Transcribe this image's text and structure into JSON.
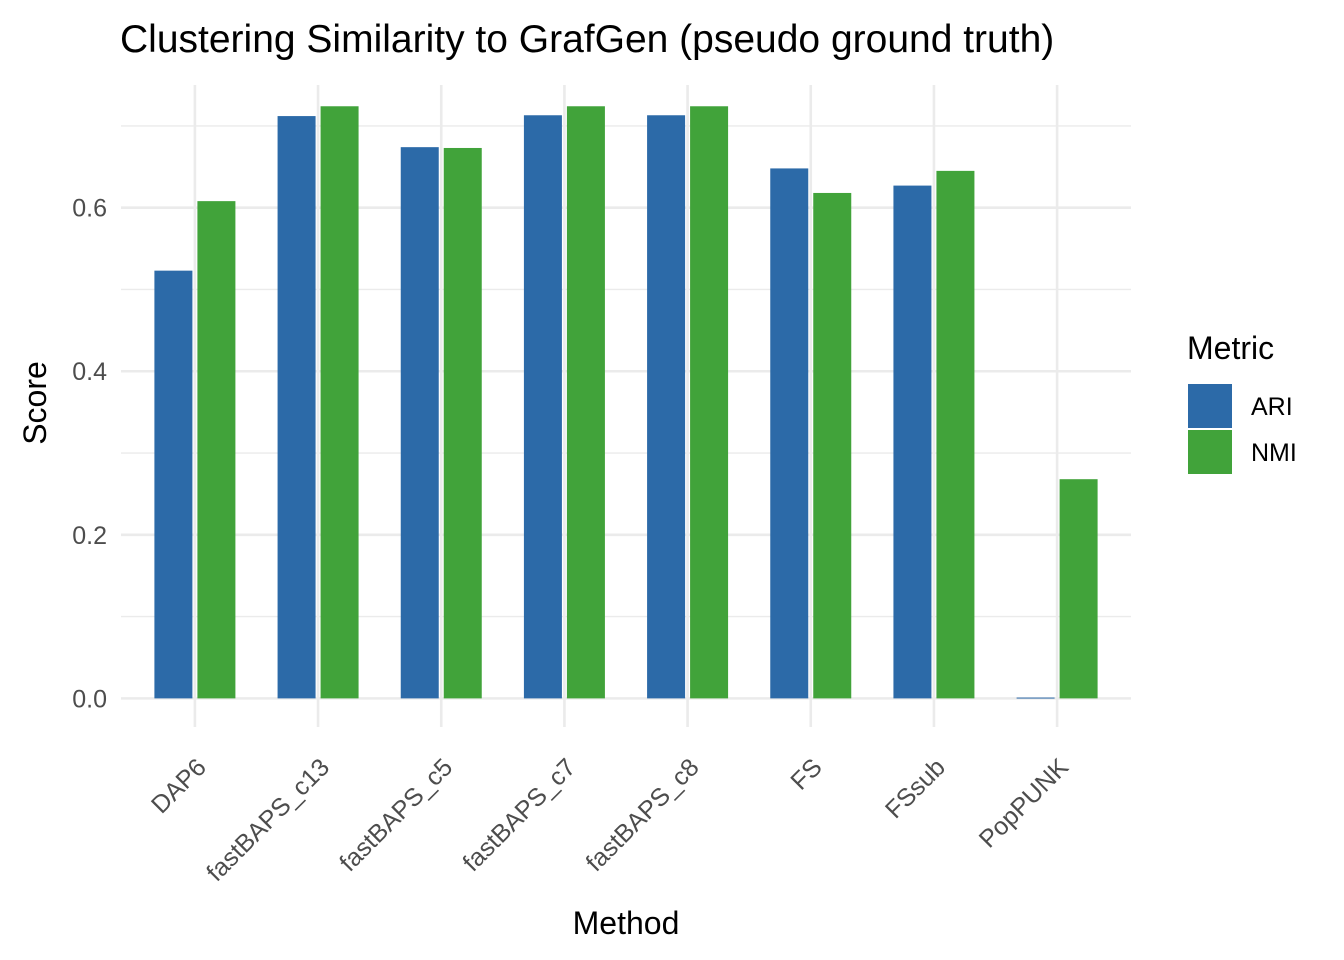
{
  "chart_data": {
    "type": "bar",
    "title": "Clustering Similarity to GrafGen (pseudo ground truth)",
    "xlabel": "Method",
    "ylabel": "Score",
    "categories": [
      "DAP6",
      "fastBAPS_c13",
      "fastBAPS_c5",
      "fastBAPS_c7",
      "fastBAPS_c8",
      "FS",
      "FSsub",
      "PopPUNK"
    ],
    "series": [
      {
        "name": "ARI",
        "color": "#2c6aa8",
        "values": [
          0.523,
          0.712,
          0.674,
          0.713,
          0.713,
          0.648,
          0.627,
          0.001
        ]
      },
      {
        "name": "NMI",
        "color": "#41a33a",
        "values": [
          0.608,
          0.724,
          0.673,
          0.724,
          0.724,
          0.618,
          0.645,
          0.268
        ]
      }
    ],
    "ylim": [
      -0.035,
      0.75
    ],
    "yticks": [
      0.0,
      0.2,
      0.4,
      0.6
    ],
    "ytick_labels": [
      "0.0",
      "0.2",
      "0.4",
      "0.6"
    ],
    "grid": true,
    "legend": {
      "title": "Metric",
      "position": "right"
    }
  }
}
